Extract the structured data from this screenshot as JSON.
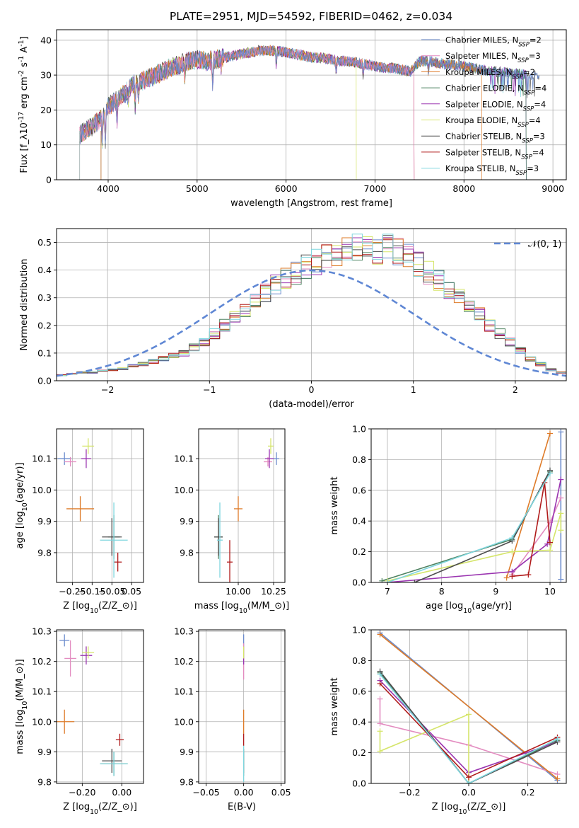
{
  "figure_title": "PLATE=2951, MJD=54592, FIBERID=0462, z=0.034",
  "model_colors": [
    "#6c8ccd",
    "#e38cc0",
    "#de7b29",
    "#4e8260",
    "#9a34b0",
    "#d5e56a",
    "#4d4d4d",
    "#b01b1b",
    "#7fd6de"
  ],
  "chart_data": [
    {
      "id": "spectrum",
      "type": "line",
      "title": "PLATE=2951, MJD=54592, FIBERID=0462, z=0.034",
      "xlabel": "wavelength [Angstrom, rest frame]",
      "ylabel": "Flux [f$_\\lambda$10$^{-17}$ erg cm$^{-2}$ s$^{-1}$ A$^{-1}$]",
      "xlim": [
        3420,
        9150
      ],
      "ylim": [
        0,
        43
      ],
      "xticks": [
        4000,
        5000,
        6000,
        7000,
        8000,
        9000
      ],
      "yticks": [
        0,
        10,
        20,
        30,
        40
      ],
      "legend_position": "top-right",
      "series": [
        {
          "name": "Chabrier MILES, N_SSP=2"
        },
        {
          "name": "Salpeter MILES, N_SSP=3"
        },
        {
          "name": "Kroupa MILES, N_SSP=2"
        },
        {
          "name": "Chabrier ELODIE, N_SSP=4"
        },
        {
          "name": "Salpeter ELODIE, N_SSP=4"
        },
        {
          "name": "Kroupa ELODIE, N_SSP=4"
        },
        {
          "name": "Chabrier STELIB, N_SSP=3"
        },
        {
          "name": "Salpeter STELIB, N_SSP=4"
        },
        {
          "name": "Kroupa STELIB, N_SSP=3"
        }
      ],
      "continuum": {
        "x": [
          3680,
          3750,
          3800,
          3850,
          3900,
          3950,
          4000,
          4100,
          4200,
          4300,
          4400,
          4500,
          4600,
          4700,
          4800,
          4900,
          5000,
          5100,
          5200,
          5300,
          5400,
          5500,
          5600,
          5700,
          5800,
          5900,
          6000,
          6100,
          6200,
          6300,
          6400,
          6500,
          6600,
          6700,
          6800,
          6900,
          7000,
          7100,
          7200,
          7300,
          7400,
          7500,
          7600,
          7700,
          7800,
          7900,
          8000,
          8100,
          8200,
          8300,
          8400,
          8500,
          8600,
          8700,
          8800,
          8850
        ],
        "y": [
          13,
          14,
          15,
          16,
          17,
          19,
          21,
          23,
          25,
          28,
          28.5,
          29.5,
          31,
          32,
          33,
          34,
          34.5,
          34,
          34.5,
          35,
          35.5,
          36,
          36.5,
          37,
          37,
          37,
          36.5,
          36,
          35.5,
          35,
          35,
          34.5,
          34,
          34,
          33.5,
          33,
          32.5,
          32,
          32,
          31.5,
          31,
          34,
          34,
          33.5,
          33,
          33,
          32.5,
          32,
          31.5,
          31,
          31,
          30.5,
          30.5,
          30,
          30,
          30
        ]
      },
      "absorption": [
        [
          3933,
          7
        ],
        [
          3968,
          9
        ],
        [
          4101,
          6
        ],
        [
          4226,
          3
        ],
        [
          4304,
          7
        ],
        [
          4340,
          5
        ],
        [
          4861,
          4
        ],
        [
          5175,
          7
        ],
        [
          5270,
          3
        ],
        [
          5890,
          4
        ],
        [
          6563,
          3
        ],
        [
          6867,
          3
        ],
        [
          7600,
          3
        ]
      ],
      "truncations": [
        [
          3680,
          "gray"
        ],
        [
          3920,
          "brown"
        ],
        [
          6790,
          "yellow"
        ],
        [
          7440,
          "brown"
        ]
      ]
    },
    {
      "id": "residuals",
      "type": "step-histogram",
      "xlabel": "(data-model)/error",
      "ylabel": "Normed distribution",
      "xlim": [
        -2.5,
        2.5
      ],
      "ylim": [
        0,
        0.55
      ],
      "xticks": [
        -2,
        -1,
        0,
        1,
        2
      ],
      "yticks": [
        0.0,
        0.1,
        0.2,
        0.3,
        0.4,
        0.5
      ],
      "legend_position": "top-right",
      "legend_label": "𝒩(0, 1)",
      "bin_width": 0.1,
      "reference_curve": {
        "name": "𝒩(0, 1)",
        "color": "#5f87d4",
        "style": "dashed"
      },
      "base_profile": [
        0.02,
        0.025,
        0.03,
        0.03,
        0.035,
        0.04,
        0.045,
        0.055,
        0.06,
        0.07,
        0.08,
        0.09,
        0.1,
        0.12,
        0.14,
        0.17,
        0.2,
        0.23,
        0.26,
        0.29,
        0.32,
        0.35,
        0.37,
        0.39,
        0.41,
        0.43,
        0.45,
        0.46,
        0.47,
        0.48,
        0.47,
        0.47,
        0.48,
        0.47,
        0.45,
        0.42,
        0.39,
        0.36,
        0.33,
        0.3,
        0.27,
        0.24,
        0.2,
        0.17,
        0.14,
        0.11,
        0.08,
        0.06,
        0.04,
        0.03
      ]
    },
    {
      "id": "age-vs-Z",
      "type": "errorbar",
      "xlabel": "Z [log$_{10}$(Z/Z$_\\odot$)]",
      "ylabel": "age  [log$_{10}$(age/yr)]",
      "xlim": [
        -0.33,
        0.11
      ],
      "ylim": [
        9.705,
        10.195
      ],
      "xticks": [
        -0.25,
        -0.15,
        -0.05,
        0.05
      ],
      "xticklabels": [
        "−0.25",
        "−0.15",
        "−0.05",
        "0.05"
      ],
      "yticks": [
        9.8,
        9.9,
        10.0,
        10.1
      ],
      "xticks_shown": [
        "−0.25",
        "−0.15",
        "−0.05",
        "0.05"
      ],
      "points": [
        {
          "x": -0.29,
          "y": 10.1,
          "c": 0
        },
        {
          "x": -0.26,
          "y": 10.09,
          "c": 1
        },
        {
          "x": -0.21,
          "y": 9.94,
          "c": 2
        },
        {
          "x": -0.04,
          "y": 9.85,
          "c": 3
        },
        {
          "x": -0.18,
          "y": 10.1,
          "c": 4
        },
        {
          "x": -0.17,
          "y": 10.14,
          "c": 5
        },
        {
          "x": -0.05,
          "y": 9.85,
          "c": 6
        },
        {
          "x": -0.02,
          "y": 9.77,
          "c": 7
        },
        {
          "x": -0.04,
          "y": 9.84,
          "c": 8
        }
      ]
    },
    {
      "id": "age-vs-mass",
      "type": "errorbar",
      "xlabel": "mass [log$_{10}$(M/M$_\\odot$)]",
      "ylabel": "",
      "xlim": [
        9.72,
        10.33
      ],
      "ylim": [
        9.705,
        10.195
      ],
      "xticks": [
        10.0,
        10.25
      ],
      "xticklabels": [
        "10.00",
        "10.25"
      ],
      "yticks": [
        9.8,
        9.9,
        10.0,
        10.1
      ],
      "points": [
        {
          "x": 10.27,
          "y": 10.1,
          "c": 0
        },
        {
          "x": 10.21,
          "y": 10.09,
          "c": 1
        },
        {
          "x": 10.0,
          "y": 9.94,
          "c": 2
        },
        {
          "x": 9.86,
          "y": 9.85,
          "c": 3
        },
        {
          "x": 10.22,
          "y": 10.1,
          "c": 4
        },
        {
          "x": 10.23,
          "y": 10.14,
          "c": 5
        },
        {
          "x": 9.86,
          "y": 9.85,
          "c": 6
        },
        {
          "x": 9.94,
          "y": 9.77,
          "c": 7
        },
        {
          "x": 9.87,
          "y": 9.84,
          "c": 8
        }
      ]
    },
    {
      "id": "weight-vs-age",
      "type": "line",
      "xlabel": "age  [log$_{10}$(age/yr)]",
      "ylabel": "mass weight",
      "xlim": [
        6.7,
        10.3
      ],
      "ylim": [
        0.0,
        1.0
      ],
      "xticks": [
        7,
        8,
        9,
        10
      ],
      "yticks": [
        0.0,
        0.2,
        0.4,
        0.6,
        0.8,
        1.0
      ],
      "series": [
        {
          "c": 0,
          "x": [
            10.2,
            10.2
          ],
          "y": [
            0.02,
            0.98
          ]
        },
        {
          "c": 1,
          "x": [
            9.3,
            10.0,
            10.2
          ],
          "y": [
            0.05,
            0.39,
            0.55
          ]
        },
        {
          "c": 2,
          "x": [
            9.2,
            10.0
          ],
          "y": [
            0.03,
            0.97
          ]
        },
        {
          "c": 3,
          "x": [
            6.9,
            9.3,
            10.0
          ],
          "y": [
            0.01,
            0.28,
            0.72
          ]
        },
        {
          "c": 4,
          "x": [
            7.0,
            9.3,
            9.95,
            10.2
          ],
          "y": [
            0.0,
            0.07,
            0.25,
            0.67
          ]
        },
        {
          "c": 5,
          "x": [
            7.0,
            9.3,
            10.0,
            10.2,
            10.2
          ],
          "y": [
            0.01,
            0.2,
            0.21,
            0.45,
            0.34
          ]
        },
        {
          "c": 6,
          "x": [
            7.5,
            9.3,
            10.0
          ],
          "y": [
            0.0,
            0.27,
            0.73
          ]
        },
        {
          "c": 7,
          "x": [
            9.3,
            9.6,
            9.9,
            10.0
          ],
          "y": [
            0.04,
            0.05,
            0.65,
            0.26
          ]
        },
        {
          "c": 8,
          "x": [
            7.0,
            9.3,
            10.0
          ],
          "y": [
            0.0,
            0.29,
            0.71
          ]
        }
      ]
    },
    {
      "id": "mass-vs-Z",
      "type": "errorbar",
      "xlabel": "Z [log$_{10}$(Z/Z$_\\odot$)]",
      "ylabel": "mass [log$_{10}$(M/M$_\\odot$)]",
      "xlim": [
        -0.33,
        0.11
      ],
      "ylim": [
        9.795,
        10.305
      ],
      "xticks": [
        -0.2,
        0.0
      ],
      "xticklabels": [
        "−0.20",
        "0.00"
      ],
      "yticks": [
        9.8,
        9.9,
        10.0,
        10.1,
        10.2,
        10.3
      ],
      "points": [
        {
          "x": -0.29,
          "y": 10.27,
          "c": 0
        },
        {
          "x": -0.26,
          "y": 10.21,
          "c": 1
        },
        {
          "x": -0.29,
          "y": 10.0,
          "c": 2
        },
        {
          "x": -0.04,
          "y": 9.86,
          "c": 3
        },
        {
          "x": -0.18,
          "y": 10.22,
          "c": 4
        },
        {
          "x": -0.17,
          "y": 10.23,
          "c": 5
        },
        {
          "x": -0.05,
          "y": 9.87,
          "c": 6
        },
        {
          "x": -0.01,
          "y": 9.94,
          "c": 7
        },
        {
          "x": -0.04,
          "y": 9.86,
          "c": 8
        }
      ]
    },
    {
      "id": "mass-vs-ebv",
      "type": "errorbar",
      "xlabel": "E(B-V)",
      "ylabel": "",
      "xlim": [
        -0.06,
        0.055
      ],
      "ylim": [
        9.795,
        10.305
      ],
      "xticks": [
        -0.05,
        0.0,
        0.05
      ],
      "xticklabels": [
        "−0.05",
        "0.00",
        "0.05"
      ],
      "yticks": [
        9.8,
        9.9,
        10.0,
        10.1,
        10.2,
        10.3
      ],
      "points": [
        {
          "x": 0.0,
          "y": 10.27,
          "c": 0
        },
        {
          "x": 0.0,
          "y": 10.2,
          "c": 1
        },
        {
          "x": 0.0,
          "y": 10.0,
          "c": 2
        },
        {
          "x": 0.0,
          "y": 9.86,
          "c": 3
        },
        {
          "x": 0.0,
          "y": 10.22,
          "c": 4
        },
        {
          "x": 0.0,
          "y": 10.23,
          "c": 5
        },
        {
          "x": 0.0,
          "y": 9.87,
          "c": 6
        },
        {
          "x": 0.0,
          "y": 9.94,
          "c": 7
        },
        {
          "x": 0.0,
          "y": 9.86,
          "c": 8
        }
      ]
    },
    {
      "id": "weight-vs-Z",
      "type": "line",
      "xlabel": "Z [log$_{10}$(Z/Z$_\\odot$)]",
      "ylabel": "mass weight",
      "xlim": [
        -0.33,
        0.33
      ],
      "ylim": [
        0.0,
        1.0
      ],
      "xticks": [
        -0.2,
        0.0,
        0.2
      ],
      "xticklabels": [
        "−0.2",
        "0.0",
        "0.2"
      ],
      "yticks": [
        0.0,
        0.2,
        0.4,
        0.6,
        0.8,
        1.0
      ],
      "series": [
        {
          "c": 0,
          "x": [
            -0.3,
            0.3
          ],
          "y": [
            0.98,
            0.02
          ]
        },
        {
          "c": 1,
          "x": [
            -0.3,
            -0.3,
            0.0,
            0.3
          ],
          "y": [
            0.55,
            0.39,
            0.25,
            0.06
          ]
        },
        {
          "c": 2,
          "x": [
            -0.3,
            0.3
          ],
          "y": [
            0.97,
            0.03
          ]
        },
        {
          "c": 3,
          "x": [
            -0.3,
            0.0,
            0.3
          ],
          "y": [
            0.72,
            0.0,
            0.28
          ]
        },
        {
          "c": 4,
          "x": [
            -0.3,
            0.0,
            0.3
          ],
          "y": [
            0.67,
            0.07,
            0.27
          ]
        },
        {
          "c": 5,
          "x": [
            -0.3,
            -0.3,
            0.0,
            0.0
          ],
          "y": [
            0.34,
            0.21,
            0.45,
            0.0
          ]
        },
        {
          "c": 6,
          "x": [
            -0.3,
            0.0,
            0.3
          ],
          "y": [
            0.73,
            0.0,
            0.27
          ]
        },
        {
          "c": 7,
          "x": [
            -0.3,
            0.0,
            0.3
          ],
          "y": [
            0.65,
            0.04,
            0.3
          ]
        },
        {
          "c": 8,
          "x": [
            -0.3,
            0.0,
            0.3
          ],
          "y": [
            0.71,
            0.0,
            0.29
          ]
        }
      ]
    }
  ]
}
